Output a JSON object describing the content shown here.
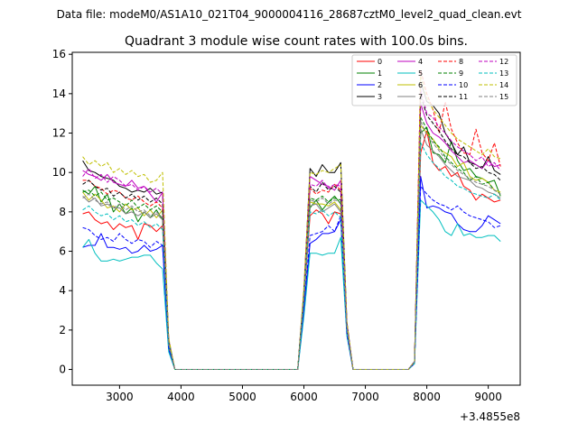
{
  "suptitle": "Data file: modeM0/AS1A10_021T04_9000004116_28687cztM0_level2_quad_clean.evt",
  "chart_data": {
    "type": "line",
    "title": "Quadrant 3 module wise count rates with 100.0s bins.",
    "xlabel": "",
    "ylabel": "",
    "x_offset_label": "+3.4855e8",
    "xlim": [
      2230,
      9520
    ],
    "ylim": [
      -0.8,
      16.1
    ],
    "xticks": [
      3000,
      4000,
      5000,
      6000,
      7000,
      8000,
      9000
    ],
    "yticks": [
      0,
      2,
      4,
      6,
      8,
      10,
      12,
      14,
      16
    ],
    "grid": false,
    "legend_position": "top-right",
    "x": [
      2400,
      2500,
      2600,
      2700,
      2800,
      2900,
      3000,
      3100,
      3200,
      3300,
      3400,
      3500,
      3600,
      3700,
      3800,
      3900,
      4000,
      4100,
      4200,
      4300,
      4400,
      4500,
      4600,
      4700,
      4800,
      4900,
      5000,
      5100,
      5200,
      5300,
      5400,
      5500,
      5600,
      5700,
      5800,
      5900,
      6000,
      6100,
      6200,
      6300,
      6400,
      6500,
      6600,
      6700,
      6800,
      6900,
      7000,
      7100,
      7200,
      7300,
      7400,
      7500,
      7600,
      7700,
      7800,
      7900,
      8000,
      8100,
      8200,
      8300,
      8400,
      8500,
      8600,
      8700,
      8800,
      8900,
      9000,
      9100,
      9200
    ],
    "series": [
      {
        "name": "0",
        "color": "#ff0000",
        "dash": false,
        "values": [
          7.9,
          8.0,
          7.6,
          7.4,
          7.5,
          7.1,
          7.4,
          7.2,
          7.3,
          6.6,
          7.4,
          7.3,
          7.0,
          7.3,
          1.2,
          0,
          0,
          0,
          0,
          0,
          0,
          0,
          0,
          0,
          0,
          0,
          0,
          0,
          0,
          0,
          0,
          0,
          0,
          0,
          0,
          0,
          3.5,
          7.8,
          8.1,
          7.9,
          7.4,
          8.0,
          7.9,
          2.0,
          0,
          0,
          0,
          0,
          0,
          0,
          0,
          0,
          0,
          0,
          0.3,
          11.0,
          12.1,
          10.5,
          10.1,
          10.3,
          9.8,
          10.0,
          9.3,
          9.1,
          8.6,
          8.9,
          8.7,
          8.5,
          8.6
        ]
      },
      {
        "name": "1",
        "color": "#008000",
        "dash": false,
        "values": [
          9.1,
          8.9,
          9.3,
          8.5,
          8.9,
          8.0,
          8.4,
          7.9,
          8.2,
          7.5,
          8.0,
          7.7,
          8.1,
          7.6,
          1.3,
          0,
          0,
          0,
          0,
          0,
          0,
          0,
          0,
          0,
          0,
          0,
          0,
          0,
          0,
          0,
          0,
          0,
          0,
          0,
          0,
          0,
          3.8,
          8.2,
          8.6,
          8.1,
          8.5,
          8.8,
          8.4,
          2.2,
          0,
          0,
          0,
          0,
          0,
          0,
          0,
          0,
          0,
          0,
          0.4,
          12.0,
          12.3,
          11.0,
          10.9,
          10.5,
          11.6,
          10.6,
          10.1,
          10.2,
          9.8,
          9.7,
          9.5,
          9.6,
          8.8
        ]
      },
      {
        "name": "2",
        "color": "#0000ff",
        "dash": false,
        "values": [
          6.2,
          6.3,
          6.3,
          6.9,
          6.2,
          6.2,
          6.1,
          6.2,
          5.9,
          6.0,
          6.3,
          6.0,
          6.1,
          6.3,
          1.0,
          0,
          0,
          0,
          0,
          0,
          0,
          0,
          0,
          0,
          0,
          0,
          0,
          0,
          0,
          0,
          0,
          0,
          0,
          0,
          0,
          0,
          3.0,
          6.4,
          6.6,
          6.9,
          6.9,
          7.0,
          7.6,
          1.8,
          0,
          0,
          0,
          0,
          0,
          0,
          0,
          0,
          0,
          0,
          0.3,
          9.8,
          8.2,
          8.3,
          8.2,
          8.0,
          7.9,
          7.4,
          7.1,
          7.0,
          7.0,
          7.3,
          7.8,
          7.6,
          7.4
        ]
      },
      {
        "name": "3",
        "color": "#000000",
        "dash": false,
        "values": [
          10.6,
          10.1,
          10.0,
          9.8,
          9.7,
          9.6,
          9.3,
          9.2,
          9.0,
          9.1,
          9.0,
          9.2,
          8.9,
          9.0,
          1.5,
          0,
          0,
          0,
          0,
          0,
          0,
          0,
          0,
          0,
          0,
          0,
          0,
          0,
          0,
          0,
          0,
          0,
          0,
          0,
          0,
          0,
          4.0,
          10.2,
          9.8,
          10.4,
          10.0,
          10.0,
          10.5,
          2.4,
          0,
          0,
          0,
          0,
          0,
          0,
          0,
          0,
          0,
          0,
          0.4,
          14.6,
          13.6,
          13.4,
          13.0,
          12.0,
          11.5,
          10.9,
          11.3,
          10.5,
          10.4,
          10.2,
          10.8,
          10.1,
          9.9
        ]
      },
      {
        "name": "4",
        "color": "#bf00bf",
        "dash": false,
        "values": [
          10.1,
          9.9,
          9.8,
          9.6,
          9.9,
          9.5,
          9.4,
          9.3,
          9.6,
          9.2,
          9.3,
          8.9,
          8.5,
          9.0,
          1.5,
          0,
          0,
          0,
          0,
          0,
          0,
          0,
          0,
          0,
          0,
          0,
          0,
          0,
          0,
          0,
          0,
          0,
          0,
          0,
          0,
          0,
          4.0,
          9.8,
          9.6,
          9.4,
          9.3,
          9.1,
          9.6,
          2.3,
          0,
          0,
          0,
          0,
          0,
          0,
          0,
          0,
          0,
          0,
          0.4,
          13.5,
          12.5,
          12.0,
          11.8,
          11.5,
          11.1,
          10.8,
          10.5,
          10.6,
          10.4,
          10.2,
          10.6,
          10.3,
          10.4
        ]
      },
      {
        "name": "5",
        "color": "#00bfbf",
        "dash": false,
        "values": [
          6.2,
          6.6,
          5.9,
          5.5,
          5.5,
          5.6,
          5.5,
          5.6,
          5.7,
          5.7,
          5.8,
          5.8,
          5.4,
          5.1,
          0.9,
          0,
          0,
          0,
          0,
          0,
          0,
          0,
          0,
          0,
          0,
          0,
          0,
          0,
          0,
          0,
          0,
          0,
          0,
          0,
          0,
          0,
          2.7,
          5.9,
          5.9,
          5.8,
          5.9,
          5.9,
          6.7,
          1.7,
          0,
          0,
          0,
          0,
          0,
          0,
          0,
          0,
          0,
          0,
          0.3,
          8.6,
          8.3,
          8.0,
          7.6,
          7.0,
          6.8,
          7.4,
          6.8,
          6.9,
          6.7,
          6.7,
          6.8,
          6.8,
          6.5
        ]
      },
      {
        "name": "6",
        "color": "#bfbf00",
        "dash": false,
        "values": [
          9.0,
          8.6,
          8.9,
          8.6,
          8.2,
          8.3,
          8.0,
          8.4,
          8.1,
          8.2,
          7.8,
          8.1,
          7.7,
          8.1,
          1.4,
          0,
          0,
          0,
          0,
          0,
          0,
          0,
          0,
          0,
          0,
          0,
          0,
          0,
          0,
          0,
          0,
          0,
          0,
          0,
          0,
          0,
          3.8,
          8.5,
          8.4,
          8.4,
          8.3,
          8.5,
          8.1,
          2.1,
          0,
          0,
          0,
          0,
          0,
          0,
          0,
          0,
          0,
          0,
          0.4,
          12.4,
          12.0,
          11.7,
          11.2,
          11.0,
          10.8,
          10.3,
          10.5,
          9.8,
          9.6,
          9.7,
          9.5,
          9.1,
          9.0
        ]
      },
      {
        "name": "7",
        "color": "#808080",
        "dash": false,
        "values": [
          8.8,
          8.5,
          8.7,
          8.3,
          8.4,
          8.2,
          8.2,
          7.9,
          8.0,
          7.8,
          8.0,
          7.7,
          7.9,
          7.6,
          1.3,
          0,
          0,
          0,
          0,
          0,
          0,
          0,
          0,
          0,
          0,
          0,
          0,
          0,
          0,
          0,
          0,
          0,
          0,
          0,
          0,
          0,
          3.7,
          8.3,
          8.4,
          8.0,
          8.2,
          8.4,
          8.0,
          2.1,
          0,
          0,
          0,
          0,
          0,
          0,
          0,
          0,
          0,
          0,
          0.4,
          12.2,
          11.4,
          11.1,
          10.8,
          10.4,
          10.1,
          9.8,
          9.7,
          9.6,
          9.3,
          9.2,
          9.0,
          8.9,
          8.7
        ]
      },
      {
        "name": "8",
        "color": "#ff0000",
        "dash": true,
        "values": [
          9.6,
          9.6,
          9.3,
          9.2,
          8.9,
          9.1,
          9.0,
          8.7,
          8.6,
          8.8,
          8.5,
          8.3,
          8.5,
          8.2,
          1.4,
          0,
          0,
          0,
          0,
          0,
          0,
          0,
          0,
          0,
          0,
          0,
          0,
          0,
          0,
          0,
          0,
          0,
          0,
          0,
          0,
          0,
          3.9,
          9.2,
          8.9,
          9.1,
          9.0,
          9.4,
          9.1,
          2.2,
          0,
          0,
          0,
          0,
          0,
          0,
          0,
          0,
          0,
          0,
          0.4,
          15.2,
          14.0,
          13.2,
          12.0,
          13.6,
          12.2,
          11.5,
          11.0,
          10.9,
          12.2,
          11.0,
          10.6,
          11.5,
          10.3
        ]
      },
      {
        "name": "9",
        "color": "#008000",
        "dash": true,
        "values": [
          9.0,
          9.1,
          8.8,
          9.0,
          8.6,
          8.7,
          8.5,
          8.3,
          8.6,
          8.2,
          8.4,
          8.1,
          8.3,
          8.0,
          1.4,
          0,
          0,
          0,
          0,
          0,
          0,
          0,
          0,
          0,
          0,
          0,
          0,
          0,
          0,
          0,
          0,
          0,
          0,
          0,
          0,
          0,
          3.8,
          8.7,
          8.6,
          8.8,
          8.5,
          8.7,
          8.6,
          2.1,
          0,
          0,
          0,
          0,
          0,
          0,
          0,
          0,
          0,
          0,
          0.4,
          12.8,
          12.2,
          11.6,
          11.3,
          10.8,
          10.5,
          10.2,
          10.0,
          9.6,
          9.8,
          9.4,
          9.5,
          9.1,
          8.9
        ]
      },
      {
        "name": "10",
        "color": "#0000ff",
        "dash": true,
        "values": [
          7.2,
          7.1,
          6.8,
          6.6,
          6.7,
          6.5,
          6.9,
          6.6,
          6.4,
          6.6,
          6.5,
          6.2,
          6.5,
          6.3,
          1.1,
          0,
          0,
          0,
          0,
          0,
          0,
          0,
          0,
          0,
          0,
          0,
          0,
          0,
          0,
          0,
          0,
          0,
          0,
          0,
          0,
          0,
          3.1,
          6.8,
          6.9,
          7.0,
          7.3,
          7.0,
          7.8,
          1.8,
          0,
          0,
          0,
          0,
          0,
          0,
          0,
          0,
          0,
          0,
          0.3,
          9.3,
          8.9,
          8.6,
          8.4,
          8.3,
          8.1,
          8.3,
          8.0,
          7.8,
          7.7,
          7.6,
          7.5,
          7.2,
          7.3
        ]
      },
      {
        "name": "11",
        "color": "#000000",
        "dash": true,
        "values": [
          9.4,
          9.6,
          9.3,
          9.1,
          9.2,
          8.8,
          9.0,
          8.7,
          8.9,
          8.6,
          8.8,
          8.5,
          8.7,
          8.4,
          1.4,
          0,
          0,
          0,
          0,
          0,
          0,
          0,
          0,
          0,
          0,
          0,
          0,
          0,
          0,
          0,
          0,
          0,
          0,
          0,
          0,
          0,
          3.9,
          9.3,
          9.0,
          9.5,
          9.1,
          9.3,
          9.0,
          2.2,
          0,
          0,
          0,
          0,
          0,
          0,
          0,
          0,
          0,
          0,
          0.4,
          13.9,
          12.9,
          12.5,
          12.1,
          11.6,
          11.2,
          10.9,
          10.8,
          10.5,
          10.2,
          10.3,
          10.0,
          9.9,
          9.6
        ]
      },
      {
        "name": "12",
        "color": "#bf00bf",
        "dash": true,
        "values": [
          9.8,
          10.2,
          9.7,
          9.9,
          9.5,
          9.8,
          9.6,
          9.3,
          9.4,
          9.1,
          9.3,
          9.0,
          9.2,
          8.9,
          1.5,
          0,
          0,
          0,
          0,
          0,
          0,
          0,
          0,
          0,
          0,
          0,
          0,
          0,
          0,
          0,
          0,
          0,
          0,
          0,
          0,
          0,
          4.0,
          9.4,
          9.3,
          9.6,
          9.2,
          9.4,
          9.3,
          2.3,
          0,
          0,
          0,
          0,
          0,
          0,
          0,
          0,
          0,
          0,
          0.4,
          14.2,
          13.0,
          12.8,
          12.3,
          12.0,
          11.6,
          11.3,
          11.1,
          10.9,
          10.6,
          10.8,
          10.3,
          10.5,
          10.1
        ]
      },
      {
        "name": "13",
        "color": "#00bfbf",
        "dash": true,
        "values": [
          8.1,
          8.3,
          8.0,
          7.8,
          7.9,
          7.6,
          7.8,
          7.5,
          7.6,
          7.3,
          7.5,
          7.2,
          7.4,
          7.1,
          1.3,
          0,
          0,
          0,
          0,
          0,
          0,
          0,
          0,
          0,
          0,
          0,
          0,
          0,
          0,
          0,
          0,
          0,
          0,
          0,
          0,
          0,
          3.5,
          8.0,
          7.9,
          8.1,
          7.8,
          8.0,
          7.7,
          2.0,
          0,
          0,
          0,
          0,
          0,
          0,
          0,
          0,
          0,
          0,
          0.3,
          11.5,
          10.9,
          10.5,
          10.2,
          9.8,
          9.6,
          9.3,
          9.2,
          9.0,
          8.9,
          8.8,
          8.7,
          8.9,
          8.6
        ]
      },
      {
        "name": "14",
        "color": "#bfbf00",
        "dash": true,
        "values": [
          10.8,
          10.4,
          10.6,
          10.3,
          10.5,
          10.0,
          10.2,
          9.9,
          10.1,
          9.8,
          9.9,
          9.5,
          9.6,
          10.0,
          1.6,
          0,
          0,
          0,
          0,
          0,
          0,
          0,
          0,
          0,
          0,
          0,
          0,
          0,
          0,
          0,
          0,
          0,
          0,
          0,
          0,
          0,
          4.2,
          10.0,
          9.9,
          10.1,
          10.0,
          10.2,
          10.4,
          2.4,
          0,
          0,
          0,
          0,
          0,
          0,
          0,
          0,
          0,
          0,
          0.4,
          14.9,
          13.8,
          13.2,
          12.8,
          12.4,
          12.0,
          11.7,
          11.5,
          11.3,
          11.1,
          10.9,
          11.2,
          10.8,
          10.7
        ]
      },
      {
        "name": "15",
        "color": "#808080",
        "dash": true,
        "values": [
          8.7,
          8.9,
          8.6,
          8.4,
          8.5,
          8.2,
          8.4,
          8.1,
          8.3,
          8.0,
          8.1,
          7.8,
          8.0,
          7.7,
          1.3,
          0,
          0,
          0,
          0,
          0,
          0,
          0,
          0,
          0,
          0,
          0,
          0,
          0,
          0,
          0,
          0,
          0,
          0,
          0,
          0,
          0,
          3.7,
          8.6,
          8.5,
          8.7,
          8.4,
          8.6,
          8.5,
          2.1,
          0,
          0,
          0,
          0,
          0,
          0,
          0,
          0,
          0,
          0,
          0.4,
          12.6,
          11.9,
          11.5,
          11.1,
          10.7,
          10.4,
          10.1,
          9.9,
          9.7,
          9.5,
          9.4,
          9.3,
          9.1,
          8.9
        ]
      }
    ]
  }
}
